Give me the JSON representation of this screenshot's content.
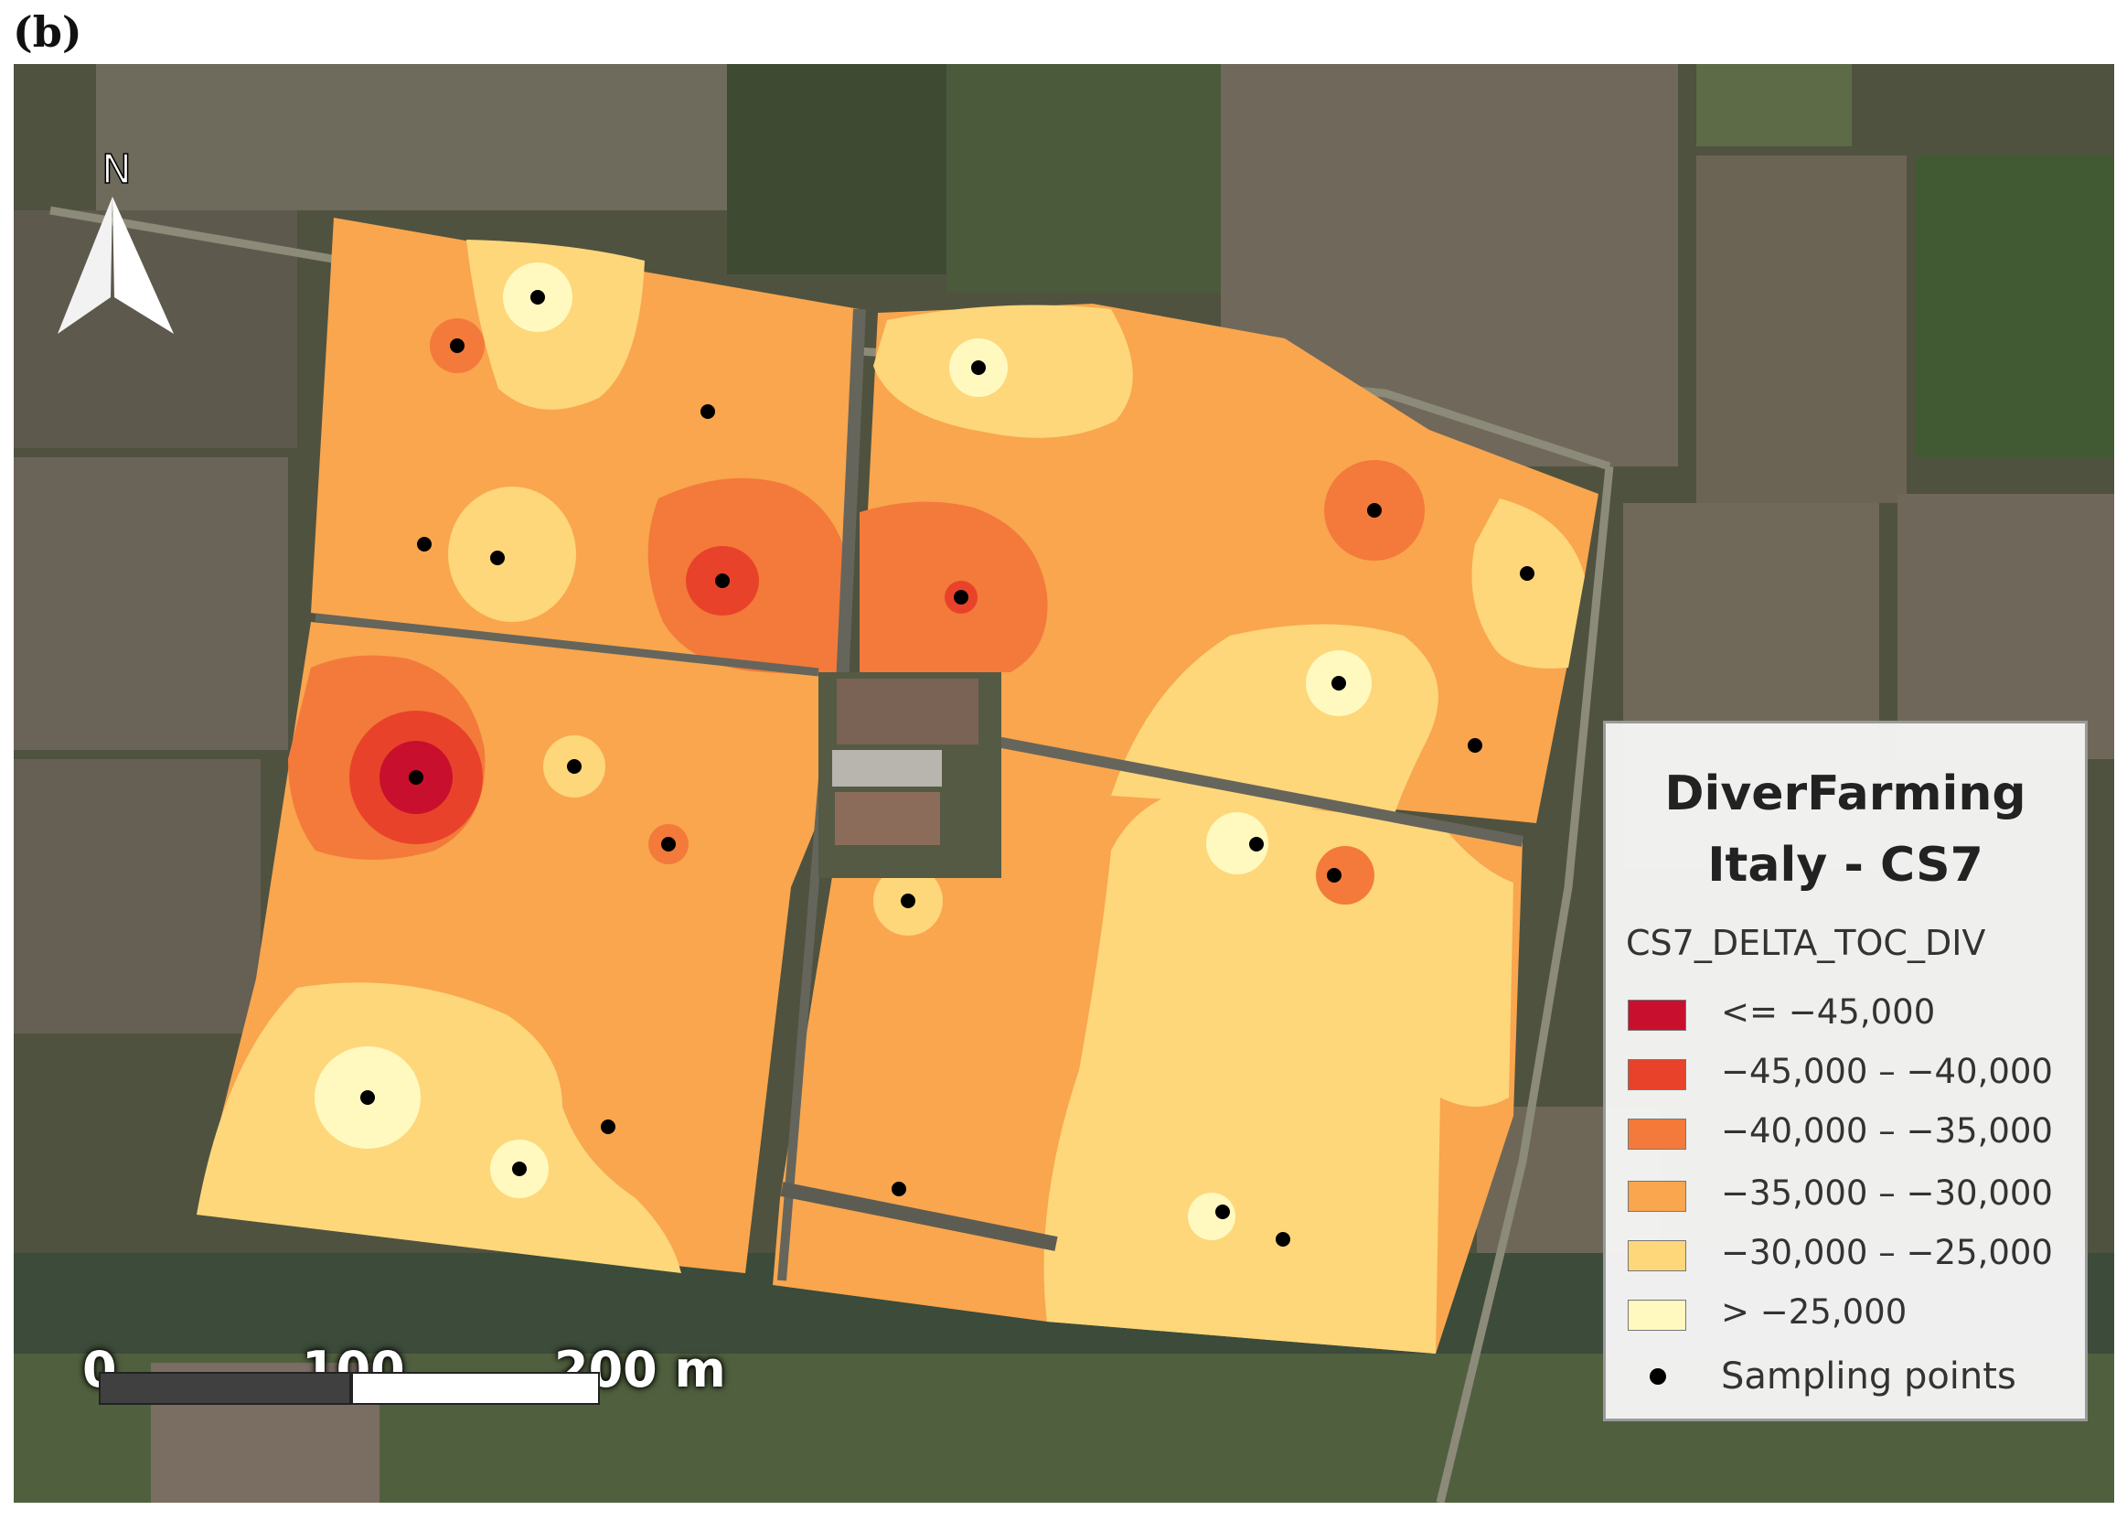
{
  "figure": {
    "panel_label": "(b)"
  },
  "north_arrow": {
    "letter": "N",
    "icon": "north-arrow-icon"
  },
  "legend": {
    "title_line1": "DiverFarming",
    "title_line2": "Italy - CS7",
    "layer_name": "CS7_DELTA_TOC_DIV",
    "classes": [
      {
        "label": "<= −45,000",
        "color": "#c8102e"
      },
      {
        "label": "−45,000 – −40,000",
        "color": "#e8432a"
      },
      {
        "label": "−40,000 – −35,000",
        "color": "#f37a3a"
      },
      {
        "label": "−35,000 – −30,000",
        "color": "#f9a64e"
      },
      {
        "label": "−30,000 – −25,000",
        "color": "#fdd77a"
      },
      {
        "label": "> −25,000",
        "color": "#fff9c0"
      }
    ],
    "points_label": "Sampling points"
  },
  "scale_bar": {
    "ticks": [
      "0",
      "100",
      "200 m"
    ]
  }
}
